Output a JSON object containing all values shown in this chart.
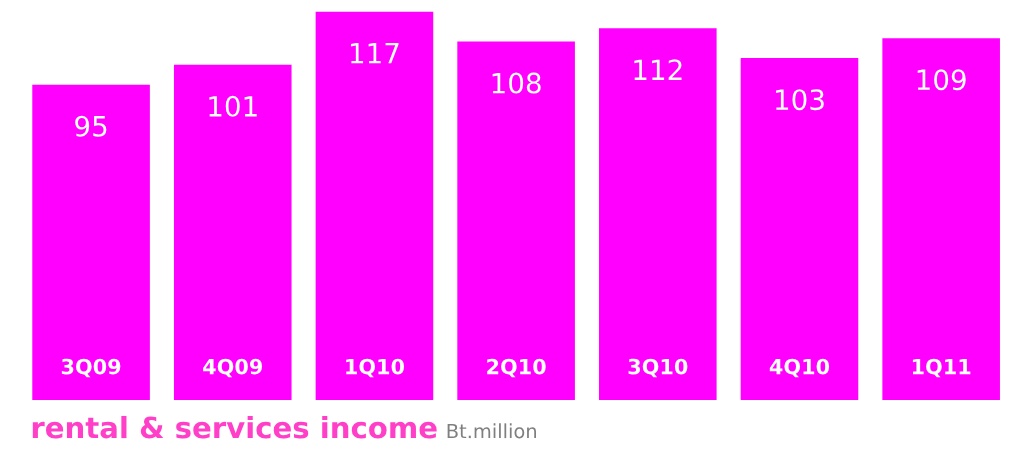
{
  "chart_data": {
    "type": "bar",
    "title": "rental & services income",
    "subtitle": "Bt.million",
    "categories": [
      "3Q09",
      "4Q09",
      "1Q10",
      "2Q10",
      "3Q10",
      "4Q10",
      "1Q11"
    ],
    "values": [
      95,
      101,
      117,
      108,
      112,
      103,
      109
    ],
    "color": "#ff00ff",
    "data_labels": true,
    "grid": false,
    "legend": false
  }
}
